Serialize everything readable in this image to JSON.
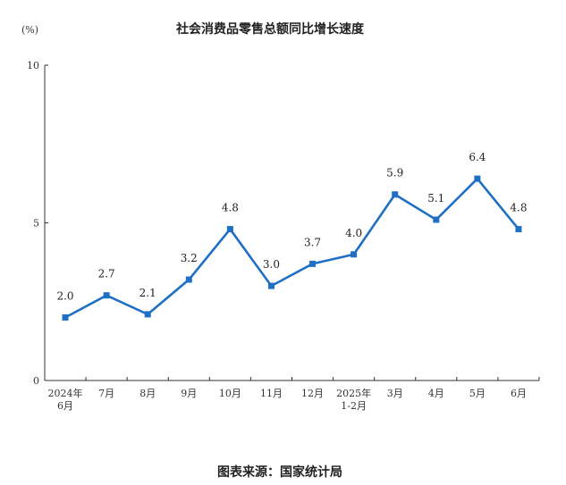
{
  "chart_data": {
    "type": "line",
    "title": "社会消费品零售总额同比增长速度",
    "unit_label": "(%)",
    "categories": [
      [
        "2024年",
        "6月"
      ],
      [
        "7月"
      ],
      [
        "8月"
      ],
      [
        "9月"
      ],
      [
        "10月"
      ],
      [
        "11月"
      ],
      [
        "12月"
      ],
      [
        "2025年",
        "1-2月"
      ],
      [
        "3月"
      ],
      [
        "4月"
      ],
      [
        "5月"
      ],
      [
        "6月"
      ]
    ],
    "values": [
      2.0,
      2.7,
      2.1,
      3.2,
      4.8,
      3.0,
      3.7,
      4.0,
      5.9,
      5.1,
      6.4,
      4.8
    ],
    "value_labels": [
      "2.0",
      "2.7",
      "2.1",
      "3.2",
      "4.8",
      "3.0",
      "3.7",
      "4.0",
      "5.9",
      "5.1",
      "6.4",
      "4.8"
    ],
    "ylim": [
      0,
      10
    ],
    "yticks": [
      0,
      5,
      10
    ],
    "grid": false,
    "line_color": "#1f6fc5",
    "marker_color": "#1f6fc5"
  },
  "source_text": "图表来源：国家统计局"
}
